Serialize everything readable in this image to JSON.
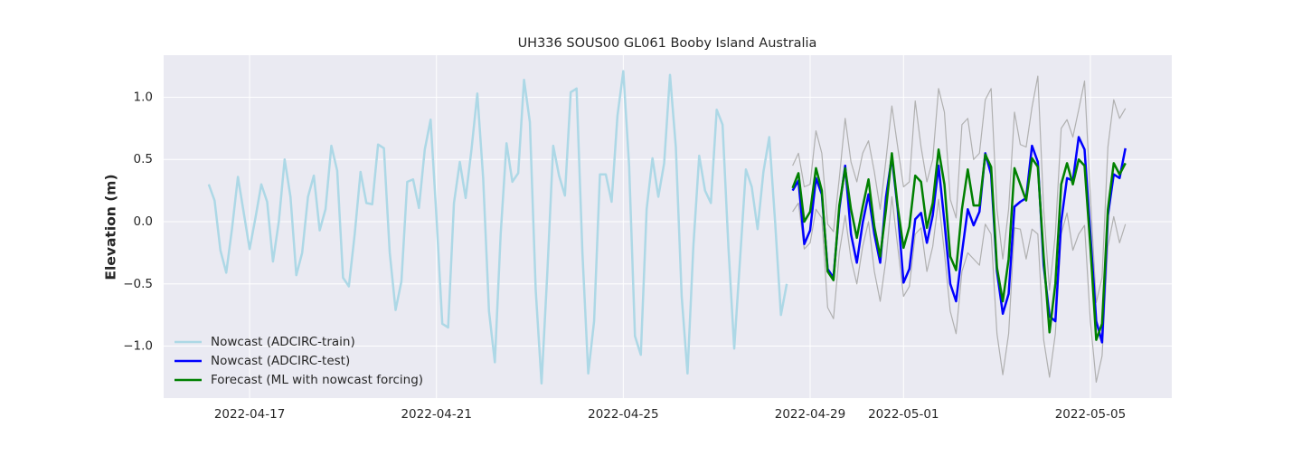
{
  "chart_data": {
    "type": "line",
    "title": "UH336 SOUS00 GL061 Booby Island Australia",
    "y_label": "Elevation (m)",
    "xlim": [
      "2022-04-15T03:50",
      "2022-05-06T17:50"
    ],
    "xticks": [
      "2022-04-17",
      "2022-04-21",
      "2022-04-25",
      "2022-04-29",
      "2022-05-01",
      "2022-05-05"
    ],
    "ylim": [
      -1.418,
      1.338
    ],
    "yticks": [
      {
        "value": -1,
        "label": "−1.0"
      },
      {
        "value": -0.5,
        "label": "−0.5"
      },
      {
        "value": 0,
        "label": "0.0"
      },
      0.5,
      {
        "value": 1,
        "label": "1.0"
      }
    ],
    "grid": true,
    "legend": "lower left",
    "series": [
      {
        "name": "Nowcast (ADCIRC-train)",
        "color": "#add8e6",
        "width": 2.5,
        "x": [
          "2022-04-16T03:00",
          "2022-04-16T06:00",
          "2022-04-16T09:00",
          "2022-04-16T12:00",
          "2022-04-16T15:00",
          "2022-04-16T18:00",
          "2022-04-16T21:00",
          "2022-04-17T00:00",
          "2022-04-17T03:00",
          "2022-04-17T06:00",
          "2022-04-17T09:00",
          "2022-04-17T12:00",
          "2022-04-17T15:00",
          "2022-04-17T18:00",
          "2022-04-17T21:00",
          "2022-04-18T00:00",
          "2022-04-18T03:00",
          "2022-04-18T06:00",
          "2022-04-18T09:00",
          "2022-04-18T12:00",
          "2022-04-18T15:00",
          "2022-04-18T18:00",
          "2022-04-18T21:00",
          "2022-04-19T00:00",
          "2022-04-19T03:00",
          "2022-04-19T06:00",
          "2022-04-19T09:00",
          "2022-04-19T12:00",
          "2022-04-19T15:00",
          "2022-04-19T18:00",
          "2022-04-19T21:00",
          "2022-04-20T00:00",
          "2022-04-20T03:00",
          "2022-04-20T06:00",
          "2022-04-20T09:00",
          "2022-04-20T12:00",
          "2022-04-20T15:00",
          "2022-04-20T18:00",
          "2022-04-20T21:00",
          "2022-04-21T00:00",
          "2022-04-21T03:00",
          "2022-04-21T06:00",
          "2022-04-21T09:00",
          "2022-04-21T12:00",
          "2022-04-21T15:00",
          "2022-04-21T18:00",
          "2022-04-21T21:00",
          "2022-04-22T00:00",
          "2022-04-22T03:00",
          "2022-04-22T06:00",
          "2022-04-22T09:00",
          "2022-04-22T12:00",
          "2022-04-22T15:00",
          "2022-04-22T18:00",
          "2022-04-22T21:00",
          "2022-04-23T00:00",
          "2022-04-23T03:00",
          "2022-04-23T06:00",
          "2022-04-23T09:00",
          "2022-04-23T12:00",
          "2022-04-23T15:00",
          "2022-04-23T18:00",
          "2022-04-23T21:00",
          "2022-04-24T00:00",
          "2022-04-24T03:00",
          "2022-04-24T06:00",
          "2022-04-24T09:00",
          "2022-04-24T12:00",
          "2022-04-24T15:00",
          "2022-04-24T18:00",
          "2022-04-24T21:00",
          "2022-04-25T00:00",
          "2022-04-25T03:00",
          "2022-04-25T06:00",
          "2022-04-25T09:00",
          "2022-04-25T12:00",
          "2022-04-25T15:00",
          "2022-04-25T18:00",
          "2022-04-25T21:00",
          "2022-04-26T00:00",
          "2022-04-26T03:00",
          "2022-04-26T06:00",
          "2022-04-26T09:00",
          "2022-04-26T12:00",
          "2022-04-26T15:00",
          "2022-04-26T18:00",
          "2022-04-26T21:00",
          "2022-04-27T00:00",
          "2022-04-27T03:00",
          "2022-04-27T06:00",
          "2022-04-27T09:00",
          "2022-04-27T12:00",
          "2022-04-27T15:00",
          "2022-04-27T18:00",
          "2022-04-27T21:00",
          "2022-04-28T00:00",
          "2022-04-28T03:00",
          "2022-04-28T06:00",
          "2022-04-28T09:00",
          "2022-04-28T12:00"
        ],
        "values": [
          0.3,
          0.17,
          -0.23,
          -0.41,
          -0.05,
          0.36,
          0.07,
          -0.22,
          0.03,
          0.3,
          0.16,
          -0.32,
          0.0,
          0.5,
          0.2,
          -0.43,
          -0.25,
          0.2,
          0.37,
          -0.07,
          0.1,
          0.61,
          0.41,
          -0.45,
          -0.52,
          -0.1,
          0.4,
          0.15,
          0.14,
          0.62,
          0.59,
          -0.25,
          -0.71,
          -0.48,
          0.32,
          0.34,
          0.11,
          0.58,
          0.82,
          0.04,
          -0.82,
          -0.85,
          0.15,
          0.48,
          0.19,
          0.58,
          1.03,
          0.35,
          -0.72,
          -1.13,
          -0.1,
          0.63,
          0.32,
          0.39,
          1.14,
          0.8,
          -0.55,
          -1.3,
          -0.4,
          0.61,
          0.37,
          0.21,
          1.04,
          1.07,
          -0.25,
          -1.22,
          -0.8,
          0.38,
          0.38,
          0.16,
          0.85,
          1.21,
          0.45,
          -0.92,
          -1.07,
          0.1,
          0.51,
          0.2,
          0.47,
          1.18,
          0.6,
          -0.6,
          -1.22,
          -0.2,
          0.53,
          0.25,
          0.15,
          0.9,
          0.78,
          -0.2,
          -1.02,
          -0.3,
          0.42,
          0.28,
          -0.06,
          0.4,
          0.68,
          0.0,
          -0.75,
          -0.5
        ]
      },
      {
        "color": "#b0b0b0",
        "width": 1.2,
        "x": [
          "2022-04-28T15:00",
          "2022-04-28T18:00",
          "2022-04-28T21:00",
          "2022-04-29T00:00",
          "2022-04-29T03:00",
          "2022-04-29T06:00",
          "2022-04-29T09:00",
          "2022-04-29T12:00",
          "2022-04-29T15:00",
          "2022-04-29T18:00",
          "2022-04-29T21:00",
          "2022-04-30T00:00",
          "2022-04-30T03:00",
          "2022-04-30T06:00",
          "2022-04-30T09:00",
          "2022-04-30T12:00",
          "2022-04-30T15:00",
          "2022-04-30T18:00",
          "2022-04-30T21:00",
          "2022-05-01T00:00",
          "2022-05-01T03:00",
          "2022-05-01T06:00",
          "2022-05-01T09:00",
          "2022-05-01T12:00",
          "2022-05-01T15:00",
          "2022-05-01T18:00",
          "2022-05-01T21:00",
          "2022-05-02T00:00",
          "2022-05-02T03:00",
          "2022-05-02T06:00",
          "2022-05-02T09:00",
          "2022-05-02T12:00",
          "2022-05-02T15:00",
          "2022-05-02T18:00",
          "2022-05-02T21:00",
          "2022-05-03T00:00",
          "2022-05-03T03:00",
          "2022-05-03T06:00",
          "2022-05-03T09:00",
          "2022-05-03T12:00",
          "2022-05-03T15:00",
          "2022-05-03T18:00",
          "2022-05-03T21:00",
          "2022-05-04T00:00",
          "2022-05-04T03:00",
          "2022-05-04T06:00",
          "2022-05-04T09:00",
          "2022-05-04T12:00",
          "2022-05-04T15:00",
          "2022-05-04T18:00",
          "2022-05-04T21:00",
          "2022-05-05T00:00",
          "2022-05-05T03:00",
          "2022-05-05T06:00",
          "2022-05-05T09:00",
          "2022-05-05T12:00",
          "2022-05-05T15:00",
          "2022-05-05T18:00"
        ],
        "values": [
          0.45,
          0.55,
          0.28,
          0.3,
          0.73,
          0.55,
          -0.02,
          -0.08,
          0.35,
          0.83,
          0.48,
          0.32,
          0.55,
          0.65,
          0.4,
          0.1,
          0.5,
          0.93,
          0.6,
          0.28,
          0.32,
          0.97,
          0.6,
          0.32,
          0.5,
          1.07,
          0.88,
          0.18,
          0.03,
          0.78,
          0.83,
          0.5,
          0.55,
          0.98,
          1.07,
          0.1,
          -0.3,
          0.1,
          0.88,
          0.62,
          0.6,
          0.92,
          1.17,
          0.1,
          -0.55,
          -0.1,
          0.75,
          0.82,
          0.68,
          0.9,
          1.13,
          0.2,
          -0.65,
          -0.45,
          0.6,
          0.98,
          0.83,
          0.91
        ]
      },
      {
        "color": "#b0b0b0",
        "width": 1.2,
        "x": [
          "2022-04-28T15:00",
          "2022-04-28T18:00",
          "2022-04-28T21:00",
          "2022-04-29T00:00",
          "2022-04-29T03:00",
          "2022-04-29T06:00",
          "2022-04-29T09:00",
          "2022-04-29T12:00",
          "2022-04-29T15:00",
          "2022-04-29T18:00",
          "2022-04-29T21:00",
          "2022-04-30T00:00",
          "2022-04-30T03:00",
          "2022-04-30T06:00",
          "2022-04-30T09:00",
          "2022-04-30T12:00",
          "2022-04-30T15:00",
          "2022-04-30T18:00",
          "2022-04-30T21:00",
          "2022-05-01T00:00",
          "2022-05-01T03:00",
          "2022-05-01T06:00",
          "2022-05-01T09:00",
          "2022-05-01T12:00",
          "2022-05-01T15:00",
          "2022-05-01T18:00",
          "2022-05-01T21:00",
          "2022-05-02T00:00",
          "2022-05-02T03:00",
          "2022-05-02T06:00",
          "2022-05-02T09:00",
          "2022-05-02T12:00",
          "2022-05-02T15:00",
          "2022-05-02T18:00",
          "2022-05-02T21:00",
          "2022-05-03T00:00",
          "2022-05-03T03:00",
          "2022-05-03T06:00",
          "2022-05-03T09:00",
          "2022-05-03T12:00",
          "2022-05-03T15:00",
          "2022-05-03T18:00",
          "2022-05-03T21:00",
          "2022-05-04T00:00",
          "2022-05-04T03:00",
          "2022-05-04T06:00",
          "2022-05-04T09:00",
          "2022-05-04T12:00",
          "2022-05-04T15:00",
          "2022-05-04T18:00",
          "2022-05-04T21:00",
          "2022-05-05T00:00",
          "2022-05-05T03:00",
          "2022-05-05T06:00",
          "2022-05-05T09:00",
          "2022-05-05T12:00",
          "2022-05-05T15:00",
          "2022-05-05T18:00"
        ],
        "values": [
          0.08,
          0.15,
          -0.22,
          -0.17,
          0.1,
          0.03,
          -0.69,
          -0.78,
          -0.25,
          0.05,
          -0.3,
          -0.5,
          -0.2,
          0.0,
          -0.4,
          -0.64,
          -0.3,
          0.2,
          -0.2,
          -0.6,
          -0.52,
          -0.1,
          -0.05,
          -0.4,
          -0.2,
          0.18,
          -0.25,
          -0.72,
          -0.9,
          -0.4,
          -0.25,
          -0.3,
          -0.35,
          -0.02,
          -0.1,
          -0.9,
          -1.23,
          -0.9,
          -0.05,
          -0.06,
          -0.3,
          -0.06,
          -0.1,
          -0.95,
          -1.25,
          -0.9,
          -0.1,
          0.07,
          -0.23,
          -0.1,
          -0.03,
          -0.8,
          -1.29,
          -1.08,
          -0.2,
          0.04,
          -0.17,
          -0.02
        ]
      },
      {
        "name": "Nowcast (ADCIRC-test)",
        "color": "#0000ff",
        "width": 2.5,
        "x": [
          "2022-04-28T15:00",
          "2022-04-28T18:00",
          "2022-04-28T21:00",
          "2022-04-29T00:00",
          "2022-04-29T03:00",
          "2022-04-29T06:00",
          "2022-04-29T09:00",
          "2022-04-29T12:00",
          "2022-04-29T15:00",
          "2022-04-29T18:00",
          "2022-04-29T21:00",
          "2022-04-30T00:00",
          "2022-04-30T03:00",
          "2022-04-30T06:00",
          "2022-04-30T09:00",
          "2022-04-30T12:00",
          "2022-04-30T15:00",
          "2022-04-30T18:00",
          "2022-04-30T21:00",
          "2022-05-01T00:00",
          "2022-05-01T03:00",
          "2022-05-01T06:00",
          "2022-05-01T09:00",
          "2022-05-01T12:00",
          "2022-05-01T15:00",
          "2022-05-01T18:00",
          "2022-05-01T21:00",
          "2022-05-02T00:00",
          "2022-05-02T03:00",
          "2022-05-02T06:00",
          "2022-05-02T09:00",
          "2022-05-02T12:00",
          "2022-05-02T15:00",
          "2022-05-02T18:00",
          "2022-05-02T21:00",
          "2022-05-03T00:00",
          "2022-05-03T03:00",
          "2022-05-03T06:00",
          "2022-05-03T09:00",
          "2022-05-03T12:00",
          "2022-05-03T15:00",
          "2022-05-03T18:00",
          "2022-05-03T21:00",
          "2022-05-04T00:00",
          "2022-05-04T03:00",
          "2022-05-04T06:00",
          "2022-05-04T09:00",
          "2022-05-04T12:00",
          "2022-05-04T15:00",
          "2022-05-04T18:00",
          "2022-05-04T21:00",
          "2022-05-05T00:00",
          "2022-05-05T03:00",
          "2022-05-05T06:00",
          "2022-05-05T09:00",
          "2022-05-05T12:00",
          "2022-05-05T15:00",
          "2022-05-05T18:00"
        ],
        "values": [
          0.25,
          0.33,
          -0.18,
          -0.07,
          0.35,
          0.22,
          -0.38,
          -0.45,
          0.1,
          0.45,
          -0.1,
          -0.33,
          -0.01,
          0.22,
          -0.1,
          -0.33,
          0.2,
          0.52,
          0.1,
          -0.49,
          -0.38,
          0.02,
          0.07,
          -0.17,
          0.05,
          0.45,
          0.0,
          -0.5,
          -0.64,
          -0.25,
          0.1,
          -0.03,
          0.08,
          0.55,
          0.38,
          -0.4,
          -0.74,
          -0.58,
          0.12,
          0.16,
          0.19,
          0.61,
          0.48,
          -0.35,
          -0.76,
          -0.8,
          0.0,
          0.35,
          0.33,
          0.68,
          0.58,
          -0.1,
          -0.8,
          -0.97,
          0.05,
          0.38,
          0.35,
          0.59
        ]
      },
      {
        "name": "Forecast (ML with nowcast forcing)",
        "color": "#008000",
        "width": 2.5,
        "x": [
          "2022-04-28T15:00",
          "2022-04-28T18:00",
          "2022-04-28T21:00",
          "2022-04-29T00:00",
          "2022-04-29T03:00",
          "2022-04-29T06:00",
          "2022-04-29T09:00",
          "2022-04-29T12:00",
          "2022-04-29T15:00",
          "2022-04-29T18:00",
          "2022-04-29T21:00",
          "2022-04-30T00:00",
          "2022-04-30T03:00",
          "2022-04-30T06:00",
          "2022-04-30T09:00",
          "2022-04-30T12:00",
          "2022-04-30T15:00",
          "2022-04-30T18:00",
          "2022-04-30T21:00",
          "2022-05-01T00:00",
          "2022-05-01T03:00",
          "2022-05-01T06:00",
          "2022-05-01T09:00",
          "2022-05-01T12:00",
          "2022-05-01T15:00",
          "2022-05-01T18:00",
          "2022-05-01T21:00",
          "2022-05-02T00:00",
          "2022-05-02T03:00",
          "2022-05-02T06:00",
          "2022-05-02T09:00",
          "2022-05-02T12:00",
          "2022-05-02T15:00",
          "2022-05-02T18:00",
          "2022-05-02T21:00",
          "2022-05-03T00:00",
          "2022-05-03T03:00",
          "2022-05-03T06:00",
          "2022-05-03T09:00",
          "2022-05-03T12:00",
          "2022-05-03T15:00",
          "2022-05-03T18:00",
          "2022-05-03T21:00",
          "2022-05-04T00:00",
          "2022-05-04T03:00",
          "2022-05-04T06:00",
          "2022-05-04T09:00",
          "2022-05-04T12:00",
          "2022-05-04T15:00",
          "2022-05-04T18:00",
          "2022-05-04T21:00",
          "2022-05-05T00:00",
          "2022-05-05T03:00",
          "2022-05-05T06:00",
          "2022-05-05T09:00",
          "2022-05-05T12:00",
          "2022-05-05T15:00",
          "2022-05-05T18:00"
        ],
        "values": [
          0.27,
          0.39,
          0.0,
          0.08,
          0.43,
          0.25,
          -0.4,
          -0.47,
          0.13,
          0.43,
          0.1,
          -0.13,
          0.12,
          0.34,
          -0.04,
          -0.28,
          0.1,
          0.55,
          0.12,
          -0.21,
          -0.04,
          0.37,
          0.32,
          -0.05,
          0.15,
          0.58,
          0.3,
          -0.28,
          -0.39,
          0.1,
          0.42,
          0.13,
          0.13,
          0.54,
          0.44,
          -0.37,
          -0.64,
          -0.3,
          0.43,
          0.3,
          0.17,
          0.51,
          0.44,
          -0.28,
          -0.89,
          -0.5,
          0.3,
          0.47,
          0.3,
          0.5,
          0.45,
          -0.2,
          -0.95,
          -0.82,
          0.1,
          0.47,
          0.38,
          0.47
        ]
      }
    ]
  }
}
